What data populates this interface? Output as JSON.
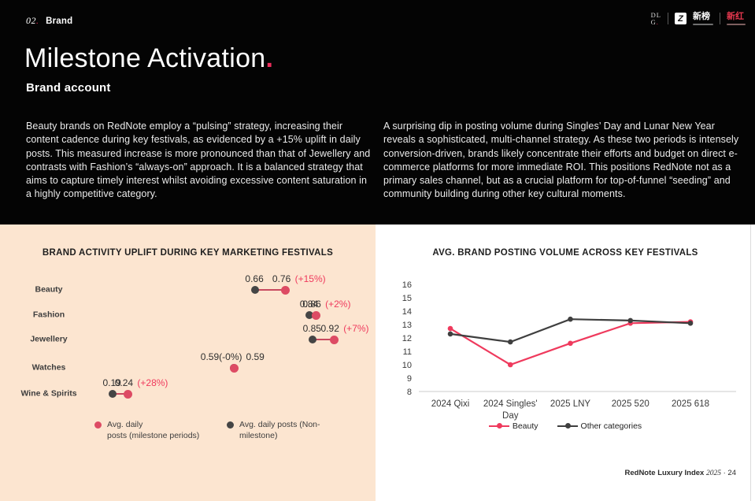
{
  "colors": {
    "accent": "#ee2d5c",
    "red_text": "#ef3a5d",
    "dot_red": "#dd4b64",
    "dot_dark": "#454545",
    "line_dark": "#3f3f3f",
    "peach_bg": "#fce5d0",
    "axis_gray": "#cbcbcb"
  },
  "header": {
    "eyebrow_number": "02",
    "eyebrow_dot": ".",
    "eyebrow_label": "Brand",
    "title": "Milestone Activation",
    "title_period": ".",
    "subtitle": "Brand account",
    "left_paragraph": "Beauty brands on RedNote employ a “pulsing” strategy, increasing their content cadence during key festivals, as evidenced by a +15% uplift in daily posts. This measured increase is more pronounced than that of Jewellery and contrasts with Fashion’s “always-on” approach. It is a balanced strategy that aims to capture timely interest whilst avoiding excessive content saturation in a highly competitive category.",
    "right_paragraph": "A surprising dip in posting volume during Singles’ Day and Lunar New Year reveals a sophisticated, multi-channel strategy. As these two periods is intensely conversion-driven, brands likely concentrate their efforts and budget on direct e-commerce platforms for more immediate ROI. This positions RedNote not as a primary sales channel, but as a crucial platform for top-of-funnel “seeding” and community building during other key cultural moments.",
    "logos": {
      "dlg_line1": "DL",
      "dlg_line2": "G",
      "dlg_dot": ".",
      "newrank_glyph": "Z",
      "newrank_name": "新榜",
      "xinhong_name": "新红"
    }
  },
  "chart_data": [
    {
      "type": "dumbbell",
      "title": "BRAND ACTIVITY UPLIFT DURING KEY MARKETING FESTIVALS",
      "categories": [
        "Beauty",
        "Fashion",
        "Jewellery",
        "Watches",
        "Wine & Spirits"
      ],
      "xlim": [
        0,
        1
      ],
      "grid": false,
      "rows": [
        {
          "label": "Beauty",
          "non": 0.66,
          "mile": 0.76,
          "non_text": "0.66",
          "mile_text": "0.76",
          "pct_text": "(+15%)"
        },
        {
          "label": "Fashion",
          "non": 0.84,
          "mile": 0.86,
          "non_text": "0.84",
          "mile_text": "0.86",
          "pct_text": "(+2%)"
        },
        {
          "label": "Jewellery",
          "non": 0.85,
          "mile": 0.92,
          "non_text": "0.85",
          "mile_text": "0.92",
          "pct_text": "(+7%)"
        },
        {
          "label": "Watches",
          "non": 0.59,
          "mile": 0.59,
          "non_text": "0.59(-0%)",
          "mile_text": "0.59",
          "pct_text": ""
        },
        {
          "label": "Wine & Spirits",
          "non": 0.19,
          "mile": 0.24,
          "non_text": "0.19",
          "mile_text": "0.24",
          "pct_text": "(+28%)"
        }
      ],
      "series": [
        {
          "name": "Avg. daily posts (milestone periods)",
          "color": "#dd4b64",
          "values": [
            0.76,
            0.86,
            0.92,
            0.59,
            0.24
          ]
        },
        {
          "name": "Avg. daily posts (Non-milestone)",
          "color": "#454545",
          "values": [
            0.66,
            0.84,
            0.85,
            0.59,
            0.19
          ]
        }
      ],
      "legend": [
        {
          "label": "Avg. daily posts (milestone periods)",
          "color": "#dd4b64"
        },
        {
          "label": "Avg. daily posts (Non-milestone)",
          "color": "#454545"
        }
      ],
      "legend_position": "bottom"
    },
    {
      "type": "line",
      "title": "AVG. BRAND POSTING VOLUME ACROSS KEY FESTIVALS",
      "categories": [
        "2024 Qixi",
        "2024 Singles' Day",
        "2025 LNY",
        "2025 520",
        "2025 618"
      ],
      "category_lines": [
        [
          "2024 Qixi"
        ],
        [
          "2024 Singles'",
          "Day"
        ],
        [
          "2025 LNY"
        ],
        [
          "2025 520"
        ],
        [
          "2025 618"
        ]
      ],
      "series": [
        {
          "name": "Beauty",
          "color": "#ef3a5d",
          "values": [
            12.7,
            10.0,
            11.6,
            13.1,
            13.2
          ]
        },
        {
          "name": "Other categories",
          "color": "#3f3f3f",
          "values": [
            12.3,
            11.7,
            13.4,
            13.3,
            13.1
          ]
        }
      ],
      "ylim": [
        8,
        16
      ],
      "yticks": [
        16,
        15,
        14,
        13,
        12,
        11,
        10,
        9,
        8
      ],
      "grid": false,
      "legend_position": "bottom"
    }
  ],
  "footer": {
    "label": "RedNote Luxury Index",
    "year": "2025",
    "separator": "·",
    "page_number": "24"
  }
}
